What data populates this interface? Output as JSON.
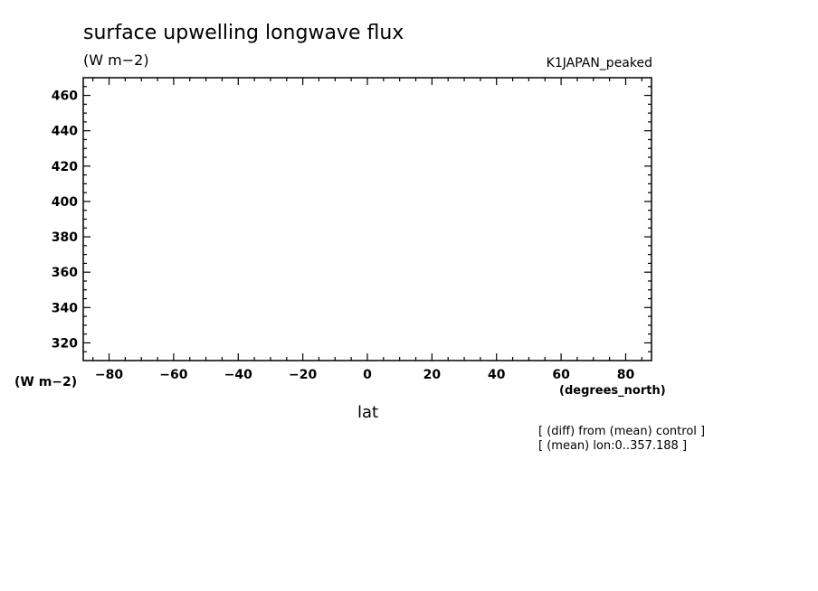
{
  "chart_data": {
    "type": "line",
    "title": "surface upwelling longwave flux",
    "units": "(W m−2)",
    "run_label": "K1JAPAN_peaked",
    "xlabel": "lat",
    "x_units": "(degrees_north)",
    "y_units": "(W m−2)",
    "xlim": [
      -88,
      88
    ],
    "ylim": [
      310,
      470
    ],
    "x_ticks": [
      -80,
      -60,
      -40,
      -20,
      0,
      20,
      40,
      60,
      80
    ],
    "y_ticks": [
      320,
      340,
      360,
      380,
      400,
      420,
      440,
      460
    ],
    "series": [],
    "notes": [
      "[ (diff) from (mean) control ]",
      "[ (mean) lon:0..357.188 ]"
    ],
    "grid": false
  }
}
